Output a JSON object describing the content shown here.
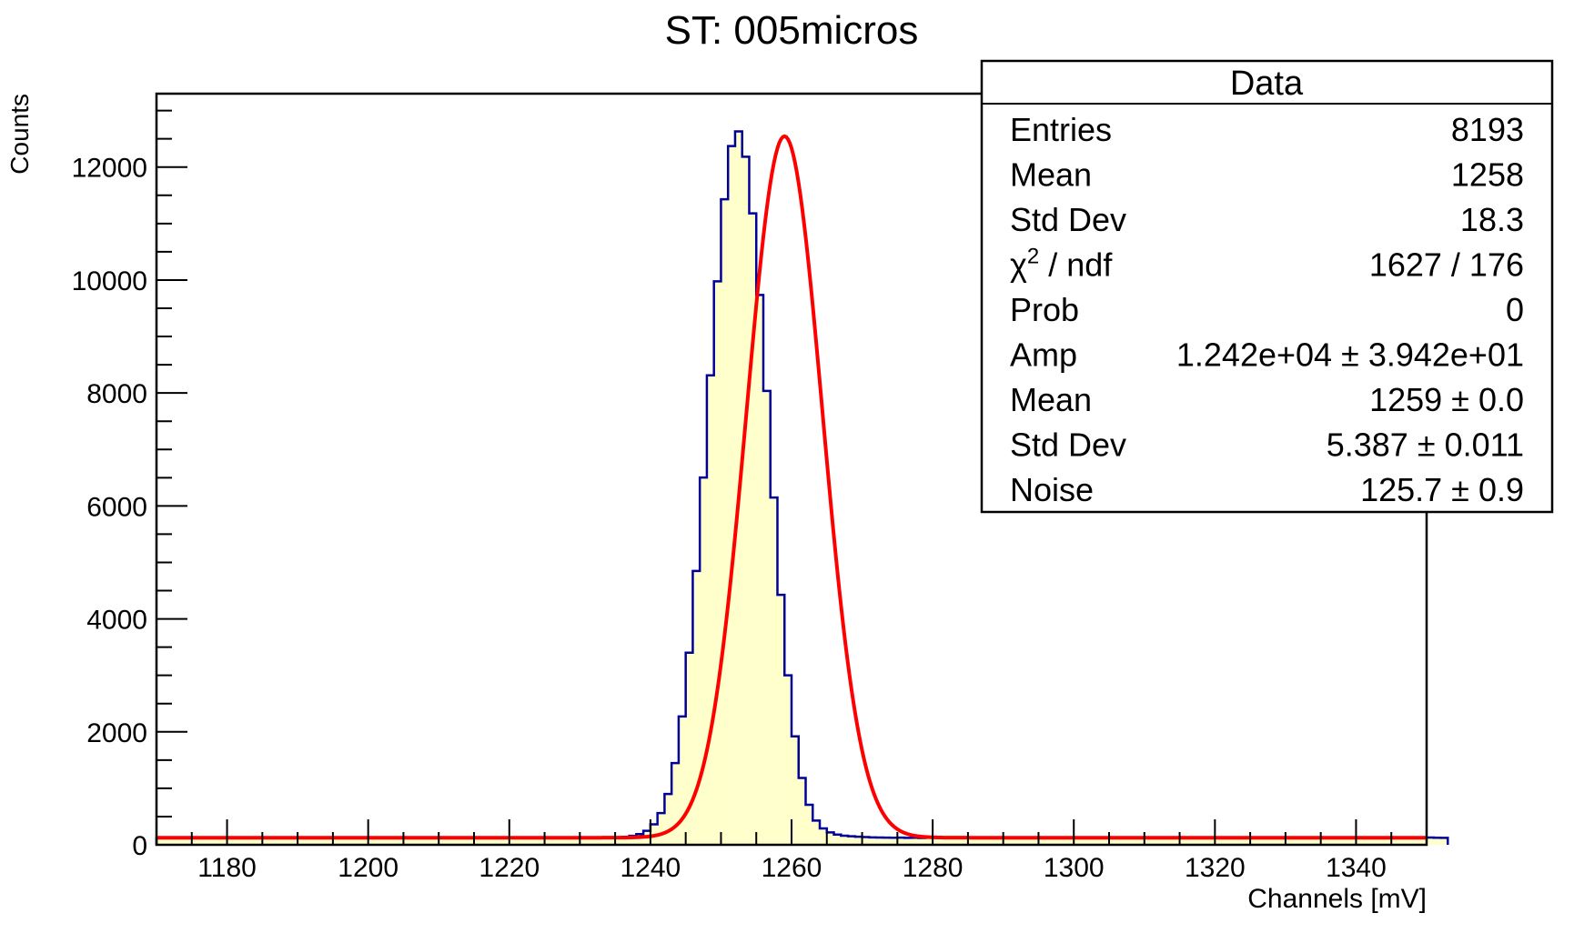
{
  "chart_data": {
    "type": "bar",
    "title": "ST: 005micros",
    "xlabel": "Channels [mV]",
    "ylabel": "Counts",
    "xlim": [
      1170,
      1350
    ],
    "ylim": [
      0,
      13300
    ],
    "bin_width": 1,
    "xticks_major": [
      1180,
      1200,
      1220,
      1240,
      1260,
      1280,
      1300,
      1320,
      1340
    ],
    "xtick_labels": [
      "1180",
      "1200",
      "1220",
      "1240",
      "1260",
      "1280",
      "1300",
      "1320",
      "1340"
    ],
    "yticks_major": [
      0,
      2000,
      4000,
      6000,
      8000,
      10000,
      12000
    ],
    "ytick_labels": [
      "0",
      "2000",
      "4000",
      "6000",
      "8000",
      "10000",
      "12000"
    ],
    "grid": false,
    "histogram": {
      "line_color": "#000099",
      "fill_color": "#ffffcc",
      "counts": [
        121,
        119,
        126,
        123,
        128,
        120,
        125,
        118,
        127,
        122,
        124,
        121,
        126,
        119,
        128,
        123,
        120,
        125,
        122,
        127,
        124,
        118,
        126,
        121,
        125,
        123,
        119,
        127,
        122,
        125,
        121,
        124,
        126,
        120,
        128,
        123,
        119,
        125,
        122,
        126,
        124,
        121,
        127,
        120,
        125,
        123,
        118,
        126,
        122,
        124,
        128,
        121,
        125,
        119,
        127,
        123,
        122,
        126,
        120,
        124,
        125,
        121,
        127,
        123,
        128,
        132,
        141,
        158,
        190,
        247,
        363,
        562,
        899,
        1448,
        2273,
        3402,
        4848,
        6504,
        8312,
        9978,
        11430,
        12373,
        12631,
        12183,
        11181,
        9736,
        8037,
        6148,
        4426,
        3000,
        1921,
        1184,
        708,
        428,
        290,
        220,
        182,
        162,
        150,
        142,
        136,
        131,
        128,
        126,
        124,
        127,
        122,
        125,
        121,
        126,
        123,
        119,
        128,
        124,
        120,
        125,
        122,
        127,
        121,
        126,
        123,
        118,
        125,
        124,
        120,
        127,
        122,
        126,
        125,
        121,
        123,
        128,
        119,
        126,
        124,
        122,
        127,
        120,
        125,
        123,
        121,
        126,
        124,
        119,
        128,
        122,
        125,
        121,
        127,
        123,
        124,
        120,
        126,
        122,
        125,
        128,
        121,
        124,
        119,
        127,
        123,
        126,
        122,
        125,
        120,
        124,
        128,
        121,
        126,
        123,
        119,
        125,
        127,
        122,
        124,
        121,
        126,
        123,
        125,
        120,
        128,
        124,
        122
      ]
    },
    "fit": {
      "color": "#ff0000",
      "function": "gaussian + constant",
      "amp": 12420,
      "mean": 1259,
      "sigma": 5.387,
      "noise": 125.7
    },
    "stats_box": {
      "title": "Data",
      "rows": [
        {
          "label": "Entries",
          "label_sup": "",
          "label_rest": "",
          "value": "8193"
        },
        {
          "label": "Mean",
          "label_sup": "",
          "label_rest": "",
          "value": "1258"
        },
        {
          "label": "Std Dev",
          "label_sup": "",
          "label_rest": "",
          "value": "18.3"
        },
        {
          "label": "χ",
          "label_sup": "2",
          "label_rest": " / ndf",
          "value": "1627 / 176"
        },
        {
          "label": "Prob",
          "label_sup": "",
          "label_rest": "",
          "value": "0"
        },
        {
          "label": "Amp",
          "label_sup": "",
          "label_rest": "",
          "value": "1.242e+04 ± 3.942e+01"
        },
        {
          "label": "Mean",
          "label_sup": "",
          "label_rest": "",
          "value": "1259 ± 0.0"
        },
        {
          "label": "Std Dev",
          "label_sup": "",
          "label_rest": "",
          "value": "5.387 ± 0.011"
        },
        {
          "label": "Noise",
          "label_sup": "",
          "label_rest": "",
          "value": "125.7 ± 0.9"
        }
      ]
    }
  }
}
